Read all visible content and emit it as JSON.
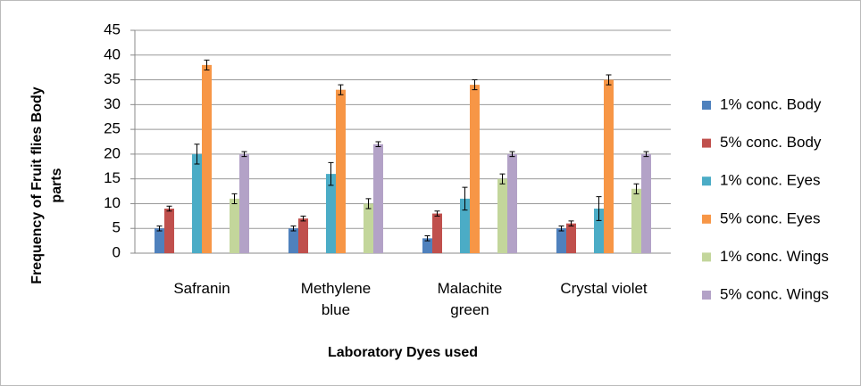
{
  "chart_data": {
    "type": "bar",
    "x_label": "Laboratory Dyes used",
    "y_label": "Frequency of Fruit flies Body parts",
    "categories": [
      "Safranin",
      "Methylene blue",
      "Malachite green",
      "Crystal violet"
    ],
    "series": [
      {
        "name": "1% conc. Body",
        "color": "#4f81bd",
        "values": [
          5,
          5,
          3,
          5
        ],
        "errors": [
          0.5,
          0.5,
          0.5,
          0.5
        ]
      },
      {
        "name": "5% conc. Body",
        "color": "#c0504d",
        "values": [
          9,
          7,
          8,
          6
        ],
        "errors": [
          0.5,
          0.5,
          0.5,
          0.5
        ]
      },
      {
        "name": "1% conc. Eyes",
        "color": "#4bacc6",
        "values": [
          20,
          16,
          11,
          9
        ],
        "errors": [
          2,
          2.3,
          2.3,
          2.4
        ]
      },
      {
        "name": "5% conc. Eyes",
        "color": "#f79646",
        "values": [
          38,
          33,
          34,
          35
        ],
        "errors": [
          1,
          1,
          1,
          1
        ]
      },
      {
        "name": "1% conc. Wings",
        "color": "#c3d69b",
        "values": [
          11,
          10,
          15,
          13
        ],
        "errors": [
          1,
          1,
          1,
          1
        ]
      },
      {
        "name": "5% conc. Wings",
        "color": "#b3a2c7",
        "values": [
          20,
          22,
          20,
          20
        ],
        "errors": [
          0.5,
          0.5,
          0.5,
          0.5
        ]
      }
    ],
    "ylim": [
      0,
      45
    ],
    "yticks": [
      0,
      5,
      10,
      15,
      20,
      25,
      30,
      35,
      40,
      45
    ],
    "grid": true,
    "legend": "right"
  }
}
